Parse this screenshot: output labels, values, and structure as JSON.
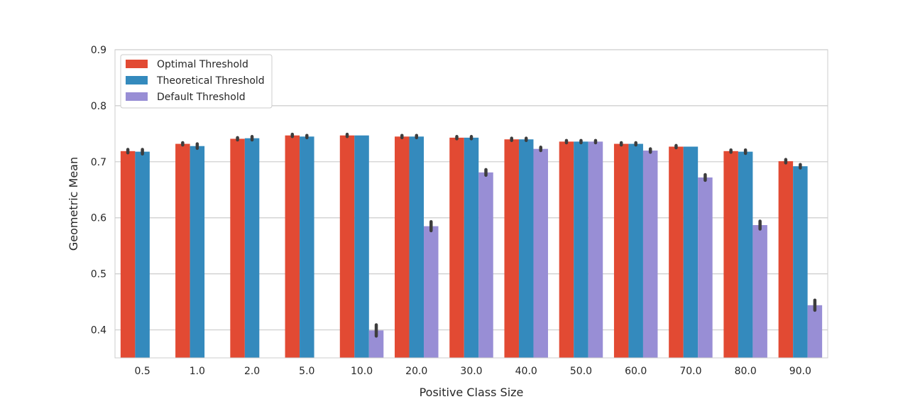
{
  "chart_data": {
    "type": "bar",
    "title": "",
    "xlabel": "Positive Class Size",
    "ylabel": "Geometric Mean",
    "ylim": [
      0.35,
      0.9
    ],
    "yticks": [
      "0.4",
      "0.5",
      "0.6",
      "0.7",
      "0.8",
      "0.9"
    ],
    "grid": "horizontal",
    "legend_position": "top-left",
    "categories": [
      "0.5",
      "1.0",
      "2.0",
      "5.0",
      "10.0",
      "20.0",
      "30.0",
      "40.0",
      "50.0",
      "60.0",
      "70.0",
      "80.0",
      "90.0"
    ],
    "series": [
      {
        "name": "Optimal Threshold",
        "color": "#e24a33",
        "values": [
          0.719,
          0.732,
          0.741,
          0.747,
          0.747,
          0.745,
          0.743,
          0.74,
          0.736,
          0.732,
          0.727,
          0.719,
          0.701
        ],
        "err": [
          0.003,
          0.002,
          0.002,
          0.002,
          0.002,
          0.002,
          0.002,
          0.002,
          0.002,
          0.002,
          0.002,
          0.002,
          0.003
        ]
      },
      {
        "name": "Theoretical Threshold",
        "color": "#348abd",
        "values": [
          0.718,
          0.728,
          0.742,
          0.745,
          0.747,
          0.745,
          0.743,
          0.74,
          0.736,
          0.732,
          0.727,
          0.718,
          0.692
        ],
        "err": [
          0.004,
          0.004,
          0.003,
          0.002,
          0.0,
          0.002,
          0.002,
          0.002,
          0.002,
          0.002,
          0.0,
          0.003,
          0.003
        ]
      },
      {
        "name": "Default Threshold",
        "color": "#988ed5",
        "values": [
          null,
          null,
          null,
          null,
          0.399,
          0.585,
          0.681,
          0.723,
          0.736,
          0.72,
          0.672,
          0.587,
          0.444
        ],
        "err": [
          0,
          0,
          0,
          0,
          0.01,
          0.008,
          0.005,
          0.003,
          0.002,
          0.003,
          0.005,
          0.007,
          0.009
        ]
      }
    ]
  }
}
